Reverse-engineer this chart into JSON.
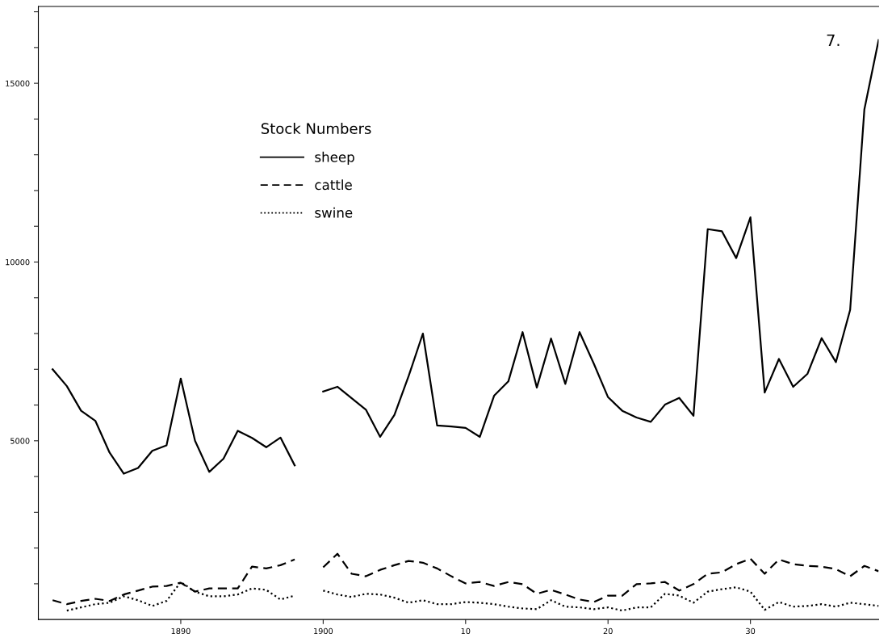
{
  "chart_data": {
    "type": "line",
    "legend_title": "Stock Numbers",
    "legend": "top left",
    "annotations": [
      "7."
    ],
    "x": [
      1881,
      1882,
      1883,
      1884,
      1885,
      1886,
      1887,
      1888,
      1889,
      1890,
      1891,
      1892,
      1893,
      1894,
      1895,
      1896,
      1897,
      1898,
      1899,
      1900,
      1901,
      1902,
      1903,
      1904,
      1905,
      1906,
      1907,
      1908,
      1909,
      1910,
      1911,
      1912,
      1913,
      1914,
      1915,
      1916,
      1917,
      1918,
      1919,
      1920,
      1921,
      1922,
      1923,
      1924,
      1925,
      1926,
      1927,
      1928,
      1929,
      1930,
      1931,
      1932,
      1933,
      1934,
      1935,
      1936,
      1937,
      1938,
      1939
    ],
    "series": [
      {
        "name": "sheep",
        "color": "#000000",
        "line_style": "solid",
        "values": [
          7000,
          6530,
          5840,
          5560,
          4670,
          4080,
          4240,
          4720,
          4870,
          6740,
          5000,
          4130,
          4500,
          5280,
          5080,
          4820,
          5090,
          4310,
          null,
          6380,
          6510,
          6190,
          5870,
          5110,
          5720,
          6810,
          8000,
          5430,
          5400,
          5360,
          5110,
          6260,
          6660,
          8040,
          6490,
          7860,
          6590,
          8040,
          7160,
          6220,
          5840,
          5650,
          5530,
          6010,
          6200,
          5700,
          10920,
          10860,
          10110,
          11250,
          6350,
          7290,
          6510,
          6870,
          7870,
          7200,
          8660,
          14270,
          16210
        ]
      },
      {
        "name": "cattle",
        "color": "#000000",
        "line_style": "dashed",
        "values": [
          540,
          430,
          520,
          580,
          520,
          700,
          810,
          920,
          940,
          1030,
          780,
          870,
          870,
          870,
          1480,
          1430,
          1520,
          1680,
          null,
          1460,
          1840,
          1280,
          1210,
          1390,
          1520,
          1640,
          1590,
          1430,
          1210,
          1010,
          1050,
          940,
          1050,
          990,
          720,
          830,
          700,
          560,
          490,
          670,
          670,
          990,
          1010,
          1050,
          810,
          990,
          1280,
          1320,
          1550,
          1700,
          1280,
          1680,
          1550,
          1500,
          1480,
          1410,
          1210,
          1500,
          1350
        ]
      },
      {
        "name": "swine",
        "color": "#000000",
        "line_style": "dotted",
        "values": [
          null,
          250,
          340,
          430,
          470,
          650,
          540,
          380,
          520,
          1050,
          780,
          650,
          650,
          700,
          870,
          830,
          560,
          670,
          null,
          810,
          700,
          630,
          720,
          700,
          610,
          470,
          540,
          430,
          430,
          490,
          470,
          430,
          360,
          310,
          290,
          540,
          360,
          340,
          290,
          340,
          250,
          340,
          340,
          720,
          670,
          470,
          780,
          850,
          900,
          780,
          270,
          490,
          360,
          380,
          430,
          360,
          470,
          430,
          380
        ]
      }
    ],
    "xlim": [
      1880,
      1939
    ],
    "xticks": [
      1890,
      1900,
      {
        "value": 1910,
        "label": "10"
      },
      {
        "value": 1920,
        "label": "20"
      },
      {
        "value": 1930,
        "label": "30"
      }
    ],
    "ylim": [
      0,
      17150
    ],
    "yticks": [
      {
        "value": 1000,
        "label": null
      },
      {
        "value": 2000,
        "label": null
      },
      {
        "value": 3000,
        "label": null
      },
      {
        "value": 4000,
        "label": null
      },
      5000,
      {
        "value": 6000,
        "label": null
      },
      {
        "value": 7000,
        "label": null
      },
      {
        "value": 8000,
        "label": null
      },
      {
        "value": 9000,
        "label": null
      },
      10000,
      {
        "value": 11000,
        "label": null
      },
      {
        "value": 12000,
        "label": null
      },
      {
        "value": 13000,
        "label": null
      },
      {
        "value": 14000,
        "label": null
      },
      15000,
      {
        "value": 16000,
        "label": null
      },
      {
        "value": 17000,
        "label": null
      }
    ],
    "grid": false,
    "marker": "none"
  }
}
